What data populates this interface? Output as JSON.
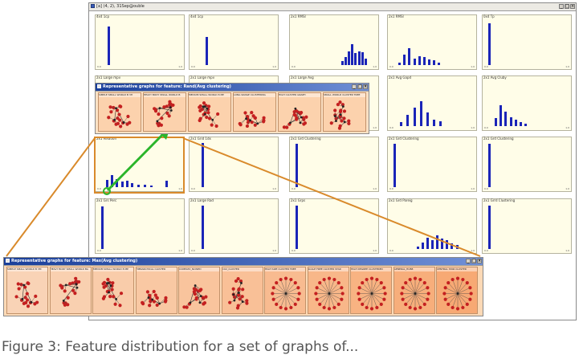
{
  "main_window": {
    "title": "[a] (4, 2), 31Sep@ouble"
  },
  "histograms": [
    {
      "label": "4x4 1cp",
      "bars": [
        [
          0.1,
          0.85
        ]
      ]
    },
    {
      "label": "4x4 1cp",
      "bars": [
        [
          0.15,
          0.62
        ]
      ]
    },
    {
      "label": "2x1 RMSI",
      "bars": [
        [
          0.58,
          0.08
        ],
        [
          0.62,
          0.18
        ],
        [
          0.66,
          0.3
        ],
        [
          0.7,
          0.45
        ],
        [
          0.74,
          0.26
        ],
        [
          0.78,
          0.3
        ],
        [
          0.82,
          0.28
        ],
        [
          0.86,
          0.14
        ]
      ]
    },
    {
      "label": "2x1 RMSI",
      "bars": [
        [
          0.08,
          0.06
        ],
        [
          0.14,
          0.22
        ],
        [
          0.2,
          0.36
        ],
        [
          0.26,
          0.14
        ],
        [
          0.32,
          0.2
        ],
        [
          0.38,
          0.18
        ],
        [
          0.44,
          0.12
        ],
        [
          0.5,
          0.1
        ],
        [
          0.56,
          0.06
        ]
      ]
    },
    {
      "label": "0x4 Tp",
      "bars": [
        [
          0.02,
          0.92
        ]
      ]
    },
    {
      "label": "2x1 Large mpv",
      "bars": [
        [
          0.1,
          0.6
        ]
      ]
    },
    {
      "label": "2x1 Large mpv",
      "bars": [
        [
          0.1,
          0.6
        ]
      ]
    },
    {
      "label": "2x1 Large Avg",
      "bars": [
        [
          0.1,
          0.6
        ]
      ]
    },
    {
      "label": "2x1 Avg Gapd",
      "bars": [
        [
          0.1,
          0.08
        ],
        [
          0.18,
          0.24
        ],
        [
          0.26,
          0.4
        ],
        [
          0.34,
          0.55
        ],
        [
          0.42,
          0.3
        ],
        [
          0.5,
          0.14
        ],
        [
          0.58,
          0.1
        ]
      ]
    },
    {
      "label": "2x1 Avg Cluby",
      "bars": [
        [
          0.1,
          0.18
        ],
        [
          0.16,
          0.45
        ],
        [
          0.22,
          0.32
        ],
        [
          0.28,
          0.2
        ],
        [
          0.34,
          0.14
        ],
        [
          0.4,
          0.08
        ],
        [
          0.46,
          0.05
        ]
      ]
    },
    {
      "label": "2x1 Relation",
      "bars": [
        [
          0.08,
          0.16
        ],
        [
          0.14,
          0.26
        ],
        [
          0.2,
          0.18
        ],
        [
          0.26,
          0.12
        ],
        [
          0.32,
          0.14
        ],
        [
          0.38,
          0.08
        ],
        [
          0.46,
          0.06
        ],
        [
          0.54,
          0.05
        ],
        [
          0.62,
          0.04
        ],
        [
          0.8,
          0.14
        ]
      ]
    },
    {
      "label": "2x1 Grid 1dx",
      "bars": [
        [
          0.1,
          0.96
        ]
      ]
    },
    {
      "label": "2x1 Grd Clustering",
      "bars": [
        [
          0.02,
          0.95
        ]
      ]
    },
    {
      "label": "2x1 Grd Clustering",
      "bars": [
        [
          0.02,
          0.95
        ]
      ]
    },
    {
      "label": "2x1 Grd Clustering",
      "bars": [
        [
          0.02,
          0.95
        ]
      ]
    },
    {
      "label": "2x1 Grs Perc",
      "bars": [
        [
          0.02,
          0.93
        ]
      ]
    },
    {
      "label": "2x1 Large Rad",
      "bars": [
        [
          0.1,
          0.94
        ]
      ]
    },
    {
      "label": "2x1 Grps",
      "bars": [
        [
          0.02,
          0.95
        ]
      ]
    },
    {
      "label": "2x1 Grd Pareig",
      "bars": [
        [
          0.3,
          0.06
        ],
        [
          0.36,
          0.14
        ],
        [
          0.42,
          0.24
        ],
        [
          0.48,
          0.2
        ],
        [
          0.54,
          0.3
        ],
        [
          0.6,
          0.22
        ],
        [
          0.66,
          0.2
        ],
        [
          0.72,
          0.12
        ],
        [
          0.78,
          0.08
        ]
      ]
    },
    {
      "label": "2x1 Grrd Clustering",
      "bars": [
        [
          0.02,
          0.95
        ]
      ]
    }
  ],
  "hist_xtick_left": "0.0",
  "hist_xtick_right": "1.0",
  "popup_small": {
    "title": "Representative graphs for feature: Rand(Avg clustering)",
    "thumbs": [
      {
        "label": "SIMPLE SMALL WORLD B 3H"
      },
      {
        "label": "HEAVY BODY SMALL WORLD B"
      },
      {
        "label": "MEDIUM SMALL WORLD 8 MP"
      },
      {
        "label": "LONG RANGE CLUSTERING"
      },
      {
        "label": "HIGH CLUSTER GRAPH"
      },
      {
        "label": "SMALL WORLD CLUSTER TREE"
      }
    ]
  },
  "popup_large": {
    "title": "Representative graphs for feature: Max(Avg clustering)",
    "thumbs": [
      {
        "label": "SIMPLE SMALL WORLD B 3M"
      },
      {
        "label": "HEAVY BODY SMALL WORLD BA"
      },
      {
        "label": "MEDIUM SMALL WORLD 8 MP"
      },
      {
        "label": "HIERARCHICAL CLUSTER"
      },
      {
        "label": "COMPLEX_NOISED"
      },
      {
        "label": "CO2_CLUSTER"
      },
      {
        "label": "HIGH SIZE CLUSTER TREE"
      },
      {
        "label": "SCALE FREE CLUSTER STAR"
      },
      {
        "label": "HIGH DEGREE CLUSTERED"
      },
      {
        "label": "GENERAL_HUB8"
      },
      {
        "label": "CENTRAL STAR CLUSTER"
      }
    ]
  },
  "caption": "Figure 3:  Feature distribution for a set of graphs of...",
  "colors": {
    "bar": "#1a24b8",
    "panel_bg": "#fffde8",
    "highlight": "#d98a2b",
    "arrow": "#2bb52b",
    "node": "#c42020"
  }
}
